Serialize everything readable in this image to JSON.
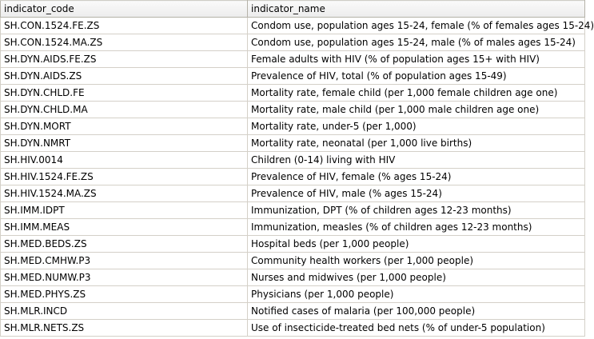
{
  "columns": [
    {
      "label": "indicator_code"
    },
    {
      "label": "indicator_name"
    }
  ],
  "rows": [
    {
      "code": "SH.CON.1524.FE.ZS",
      "name": "Condom use, population ages 15-24, female (% of females ages 15-24)"
    },
    {
      "code": "SH.CON.1524.MA.ZS",
      "name": "Condom use, population ages 15-24, male (% of males ages 15-24)"
    },
    {
      "code": "SH.DYN.AIDS.FE.ZS",
      "name": "Female adults with HIV (% of population ages 15+ with HIV)"
    },
    {
      "code": "SH.DYN.AIDS.ZS",
      "name": "Prevalence of HIV, total (% of population ages 15-49)"
    },
    {
      "code": "SH.DYN.CHLD.FE",
      "name": "Mortality rate, female child (per 1,000 female children age one)"
    },
    {
      "code": "SH.DYN.CHLD.MA",
      "name": "Mortality rate, male child (per 1,000 male children age one)"
    },
    {
      "code": "SH.DYN.MORT",
      "name": "Mortality rate, under-5 (per 1,000)"
    },
    {
      "code": "SH.DYN.NMRT",
      "name": "Mortality rate, neonatal (per 1,000 live births)"
    },
    {
      "code": "SH.HIV.0014",
      "name": "Children (0-14) living with HIV"
    },
    {
      "code": "SH.HIV.1524.FE.ZS",
      "name": "Prevalence of HIV, female (% ages 15-24)"
    },
    {
      "code": "SH.HIV.1524.MA.ZS",
      "name": "Prevalence of HIV, male (% ages 15-24)"
    },
    {
      "code": "SH.IMM.IDPT",
      "name": "Immunization, DPT (% of children ages 12-23 months)"
    },
    {
      "code": "SH.IMM.MEAS",
      "name": "Immunization, measles (% of children ages 12-23 months)"
    },
    {
      "code": "SH.MED.BEDS.ZS",
      "name": "Hospital beds (per 1,000 people)"
    },
    {
      "code": "SH.MED.CMHW.P3",
      "name": "Community health workers (per 1,000 people)"
    },
    {
      "code": "SH.MED.NUMW.P3",
      "name": "Nurses and midwives (per 1,000 people)"
    },
    {
      "code": "SH.MED.PHYS.ZS",
      "name": "Physicians (per 1,000 people)"
    },
    {
      "code": "SH.MLR.INCD",
      "name": "Notified cases of malaria (per 100,000 people)"
    },
    {
      "code": "SH.MLR.NETS.ZS",
      "name": "Use of insecticide-treated bed nets (% of under-5 population)"
    }
  ]
}
